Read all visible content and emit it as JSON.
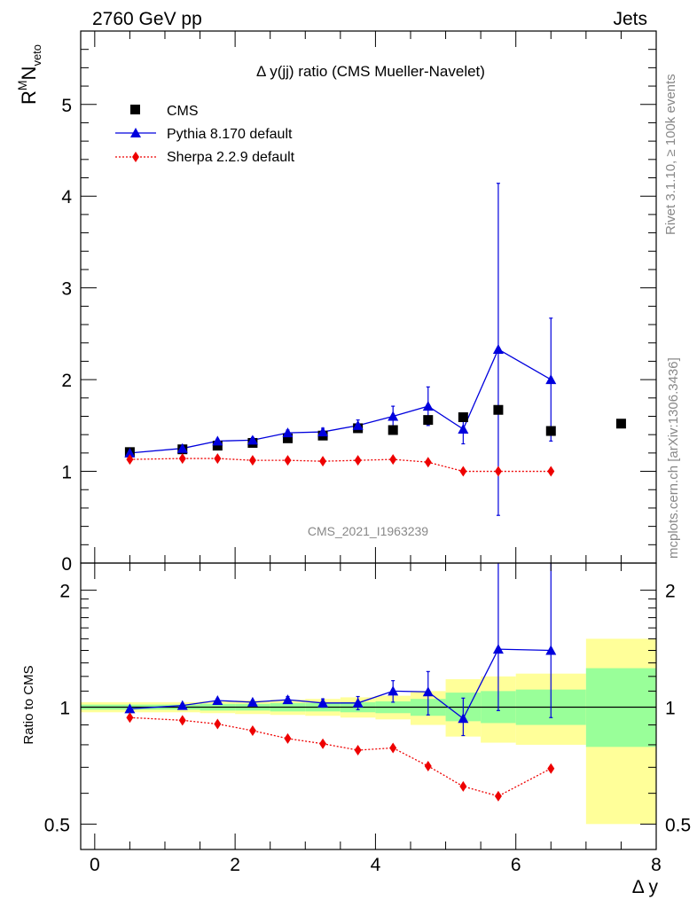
{
  "header": {
    "left": "2760 GeV pp",
    "right": "Jets"
  },
  "side": {
    "rivet": "Rivet 3.1.10, ≥ 100k events",
    "mcplots": "mcplots.cern.ch [arXiv:1306.3436]"
  },
  "chart_data": [
    {
      "type": "scatter",
      "title": "Δ y(jj) ratio (CMS Mueller-Navelet)",
      "ylabel_main": "R",
      "ylabel_sup": "M",
      "ylabel_main2": "N",
      "ylabel_sub": "veto",
      "watermark": "CMS_2021_I1963239",
      "xlim": [
        -0.2,
        8.0
      ],
      "ylim": [
        0,
        5.8
      ],
      "yticks": [
        0,
        1,
        2,
        3,
        4,
        5
      ],
      "legend_position": "top-left",
      "series": [
        {
          "name": "CMS",
          "color": "#000000",
          "marker": "square",
          "x": [
            0.5,
            1.25,
            1.75,
            2.25,
            2.75,
            3.25,
            3.75,
            4.25,
            4.75,
            5.25,
            5.75,
            6.5,
            7.5
          ],
          "y": [
            1.21,
            1.24,
            1.28,
            1.31,
            1.36,
            1.39,
            1.47,
            1.45,
            1.56,
            1.59,
            1.67,
            1.44,
            1.52
          ]
        },
        {
          "name": "Pythia 8.170 default",
          "color": "#0000dd",
          "marker": "triangle",
          "x": [
            0.5,
            1.25,
            1.75,
            2.25,
            2.75,
            3.25,
            3.75,
            4.25,
            4.75,
            5.25,
            5.75,
            6.5
          ],
          "y": [
            1.2,
            1.25,
            1.33,
            1.34,
            1.42,
            1.43,
            1.5,
            1.6,
            1.71,
            1.46,
            2.33,
            2.0
          ],
          "err": [
            0.02,
            0.02,
            0.02,
            0.03,
            0.03,
            0.04,
            0.06,
            0.11,
            0.21,
            0.16,
            1.81,
            0.67
          ]
        },
        {
          "name": "Sherpa 2.2.9 default",
          "color": "#ee0000",
          "marker": "diamond",
          "x": [
            0.5,
            1.25,
            1.75,
            2.25,
            2.75,
            3.25,
            3.75,
            4.25,
            4.75,
            5.25,
            5.75,
            6.5
          ],
          "y": [
            1.13,
            1.14,
            1.14,
            1.12,
            1.12,
            1.11,
            1.12,
            1.13,
            1.1,
            1.0,
            1.0,
            1.0
          ]
        }
      ]
    },
    {
      "type": "scatter",
      "ylabel": "Ratio to CMS",
      "xlabel": "Δ y",
      "xlim": [
        -0.2,
        8.0
      ],
      "ylim": [
        0.43,
        2.35
      ],
      "log_scale_y": true,
      "yticks": [
        0.5,
        1,
        2
      ],
      "xticks": [
        0,
        2,
        4,
        6,
        8
      ],
      "bands": [
        {
          "x0": -0.2,
          "x1": 1.0,
          "g_lo": 0.985,
          "g_hi": 1.015,
          "y_lo": 0.97,
          "y_hi": 1.03
        },
        {
          "x0": 1.0,
          "x1": 1.5,
          "g_lo": 0.985,
          "g_hi": 1.015,
          "y_lo": 0.97,
          "y_hi": 1.03
        },
        {
          "x0": 1.5,
          "x1": 2.0,
          "g_lo": 0.98,
          "g_hi": 1.02,
          "y_lo": 0.965,
          "y_hi": 1.035
        },
        {
          "x0": 2.0,
          "x1": 2.5,
          "g_lo": 0.98,
          "g_hi": 1.02,
          "y_lo": 0.96,
          "y_hi": 1.04
        },
        {
          "x0": 2.5,
          "x1": 3.0,
          "g_lo": 0.975,
          "g_hi": 1.025,
          "y_lo": 0.955,
          "y_hi": 1.045
        },
        {
          "x0": 3.0,
          "x1": 3.5,
          "g_lo": 0.975,
          "g_hi": 1.025,
          "y_lo": 0.95,
          "y_hi": 1.05
        },
        {
          "x0": 3.5,
          "x1": 4.0,
          "g_lo": 0.97,
          "g_hi": 1.03,
          "y_lo": 0.94,
          "y_hi": 1.06
        },
        {
          "x0": 4.0,
          "x1": 4.5,
          "g_lo": 0.965,
          "g_hi": 1.035,
          "y_lo": 0.93,
          "y_hi": 1.07
        },
        {
          "x0": 4.5,
          "x1": 5.0,
          "g_lo": 0.95,
          "g_hi": 1.05,
          "y_lo": 0.9,
          "y_hi": 1.1
        },
        {
          "x0": 5.0,
          "x1": 5.5,
          "g_lo": 0.92,
          "g_hi": 1.09,
          "y_lo": 0.84,
          "y_hi": 1.18
        },
        {
          "x0": 5.5,
          "x1": 6.0,
          "g_lo": 0.91,
          "g_hi": 1.1,
          "y_lo": 0.81,
          "y_hi": 1.2
        },
        {
          "x0": 6.0,
          "x1": 7.0,
          "g_lo": 0.9,
          "g_hi": 1.11,
          "y_lo": 0.8,
          "y_hi": 1.22
        },
        {
          "x0": 7.0,
          "x1": 8.0,
          "g_lo": 0.79,
          "g_hi": 1.26,
          "y_lo": 0.5,
          "y_hi": 1.5
        }
      ],
      "band_colors": {
        "green": "#99ff99",
        "yellow": "#ffff99"
      },
      "series": [
        {
          "name": "Pythia 8.170 default",
          "color": "#0000dd",
          "x": [
            0.5,
            1.25,
            1.75,
            2.25,
            2.75,
            3.25,
            3.75,
            4.25,
            4.75,
            5.25,
            5.75,
            6.5
          ],
          "y": [
            0.99,
            1.01,
            1.04,
            1.03,
            1.045,
            1.025,
            1.025,
            1.1,
            1.095,
            0.935,
            1.41,
            1.4
          ],
          "err_up": [
            0.01,
            0.01,
            0.01,
            0.01,
            0.02,
            0.025,
            0.04,
            0.07,
            0.14,
            0.12,
            1.0,
            1.0
          ],
          "err_dn": [
            0.01,
            0.01,
            0.01,
            0.01,
            0.02,
            0.025,
            0.04,
            0.07,
            0.14,
            0.09,
            0.43,
            0.46
          ]
        },
        {
          "name": "Sherpa 2.2.9 default",
          "color": "#ee0000",
          "x": [
            0.5,
            1.25,
            1.75,
            2.25,
            2.75,
            3.25,
            3.75,
            4.25,
            4.75,
            5.25,
            5.75,
            6.5
          ],
          "y": [
            0.94,
            0.925,
            0.905,
            0.87,
            0.83,
            0.805,
            0.775,
            0.785,
            0.705,
            0.625,
            0.59,
            0.695
          ]
        }
      ]
    }
  ]
}
